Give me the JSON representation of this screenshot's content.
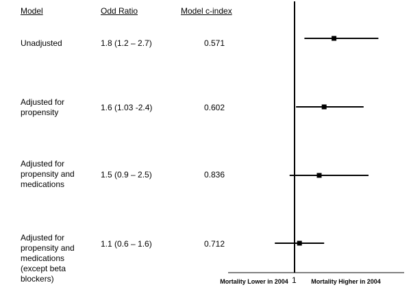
{
  "table": {
    "headers": {
      "model": "Model",
      "or": "Odd Ratio",
      "cindex": "Model  c-index"
    },
    "rows": [
      {
        "model": "Unadjusted",
        "or": "1.8 (1.2 – 2.7)",
        "cindex": "0.571"
      },
      {
        "model": "Adjusted for propensity",
        "or": "1.6 (1.03 -2.4)",
        "cindex": "0.602"
      },
      {
        "model": "Adjusted for propensity and medications",
        "or": "1.5 (0.9 – 2.5)",
        "cindex": "0.836"
      },
      {
        "model": "Adjusted for propensity and medications (except beta blockers)",
        "or": "1.1 (0.6 – 1.6)",
        "cindex": "0.712"
      }
    ]
  },
  "chart_data": {
    "type": "scatter",
    "subtype": "forest-plot",
    "reference_line": 1,
    "reference_label": "1",
    "x_left_label": "Mortality Lower in 2004",
    "x_right_label": "Mortality Higher in 2004",
    "series": [
      {
        "point": 1.8,
        "low": 1.2,
        "high": 2.7
      },
      {
        "point": 1.6,
        "low": 1.03,
        "high": 2.4
      },
      {
        "point": 1.5,
        "low": 0.9,
        "high": 2.5
      },
      {
        "point": 1.1,
        "low": 0.6,
        "high": 1.6
      }
    ],
    "colors": {
      "ink": "#000000"
    }
  }
}
